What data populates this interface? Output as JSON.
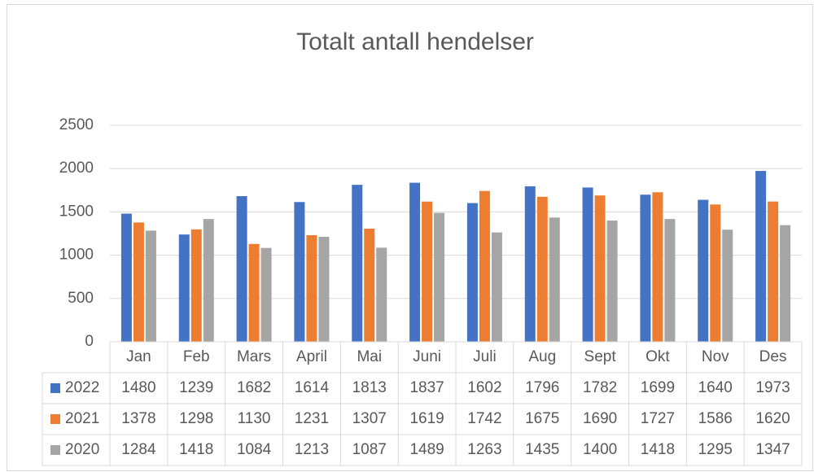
{
  "chart_data": {
    "type": "bar",
    "title": "Totalt antall hendelser",
    "categories": [
      "Jan",
      "Feb",
      "Mars",
      "April",
      "Mai",
      "Juni",
      "Juli",
      "Aug",
      "Sept",
      "Okt",
      "Nov",
      "Des"
    ],
    "series": [
      {
        "name": "2022",
        "color": "#4472c4",
        "values": [
          1480,
          1239,
          1682,
          1614,
          1813,
          1837,
          1602,
          1796,
          1782,
          1699,
          1640,
          1973
        ]
      },
      {
        "name": "2021",
        "color": "#ed7d31",
        "values": [
          1378,
          1298,
          1130,
          1231,
          1307,
          1619,
          1742,
          1675,
          1690,
          1727,
          1586,
          1620
        ]
      },
      {
        "name": "2020",
        "color": "#a5a5a5",
        "values": [
          1284,
          1418,
          1084,
          1213,
          1087,
          1489,
          1263,
          1435,
          1400,
          1418,
          1295,
          1347
        ]
      }
    ],
    "ylim": [
      0,
      2500
    ],
    "yticks": [
      0,
      500,
      1000,
      1500,
      2000,
      2500
    ],
    "grid": true,
    "data_table": true
  }
}
